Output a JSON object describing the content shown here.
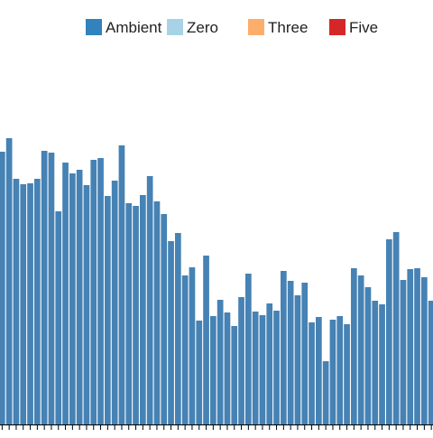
{
  "chart_data": {
    "type": "bar",
    "title": "",
    "xlabel": "",
    "ylabel": "",
    "grid": false,
    "legend_position": "top",
    "legend": [
      {
        "label": "Ambient",
        "color": "#3182bd"
      },
      {
        "label": "Zero",
        "color": "#a6d4e6"
      },
      {
        "label": "Three",
        "color": "#fdae6b"
      },
      {
        "label": "Five",
        "color": "#d62728"
      }
    ],
    "series": [
      {
        "name": "Ambient",
        "color": "#4682b4",
        "values": [
          302,
          317,
          272,
          266,
          267,
          272,
          303,
          301,
          236,
          290,
          278,
          282,
          265,
          293,
          295,
          253,
          270,
          309,
          245,
          242,
          254,
          275,
          247,
          233,
          203,
          212,
          165,
          174,
          115,
          187,
          120,
          138,
          124,
          109,
          141,
          167,
          125,
          121,
          134,
          126,
          170,
          159,
          143,
          157,
          113,
          119,
          70,
          116,
          120,
          111,
          173,
          165,
          152,
          137,
          133,
          205,
          213,
          160,
          172,
          173,
          163,
          137,
          200
        ]
      }
    ],
    "ylim": [
      0,
      340
    ]
  }
}
